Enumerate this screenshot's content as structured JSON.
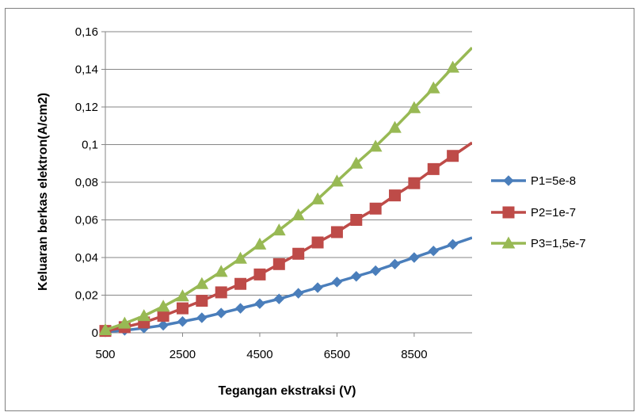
{
  "chart_data": {
    "type": "line",
    "title": "",
    "xlabel": "Tegangan ekstraksi (V)",
    "ylabel": "Keluaran berkas elektron(A/cm2)",
    "xlim": [
      500,
      10000
    ],
    "ylim": [
      0,
      0.16
    ],
    "xticks": [
      500,
      2500,
      4500,
      6500,
      8500
    ],
    "xtick_labels": [
      "500",
      "2500",
      "4500",
      "6500",
      "8500"
    ],
    "yticks": [
      0,
      0.02,
      0.04,
      0.06,
      0.08,
      0.1,
      0.12,
      0.14,
      0.16
    ],
    "ytick_labels": [
      "0",
      "0,02",
      "0,04",
      "0,06",
      "0,08",
      "0,1",
      "0,12",
      "0,14",
      "0,16"
    ],
    "grid": "horizontal",
    "legend_position": "right",
    "x": [
      500,
      1000,
      1500,
      2000,
      2500,
      3000,
      3500,
      4000,
      4500,
      5000,
      5500,
      6000,
      6500,
      7000,
      7500,
      8000,
      8500,
      9000,
      9500,
      10000
    ],
    "series": [
      {
        "name": "P1=5e-8",
        "color": "#4a7ebb",
        "marker": "diamond",
        "values": [
          0.0005,
          0.0013,
          0.0025,
          0.004,
          0.006,
          0.008,
          0.0105,
          0.013,
          0.0155,
          0.018,
          0.021,
          0.024,
          0.027,
          0.03,
          0.033,
          0.0365,
          0.04,
          0.0435,
          0.047,
          0.0505
        ]
      },
      {
        "name": "P2=1e-7",
        "color": "#be4b48",
        "marker": "square",
        "values": [
          0.001,
          0.003,
          0.0055,
          0.009,
          0.013,
          0.017,
          0.0215,
          0.026,
          0.031,
          0.0365,
          0.042,
          0.048,
          0.0535,
          0.06,
          0.066,
          0.073,
          0.0795,
          0.087,
          0.094,
          0.101
        ]
      },
      {
        "name": "P3=1,5e-7",
        "color": "#98b954",
        "marker": "triangle",
        "values": [
          0.0015,
          0.005,
          0.009,
          0.014,
          0.0195,
          0.026,
          0.0325,
          0.0395,
          0.047,
          0.0545,
          0.0625,
          0.071,
          0.0805,
          0.09,
          0.099,
          0.109,
          0.1195,
          0.13,
          0.141,
          0.1515
        ]
      }
    ]
  }
}
